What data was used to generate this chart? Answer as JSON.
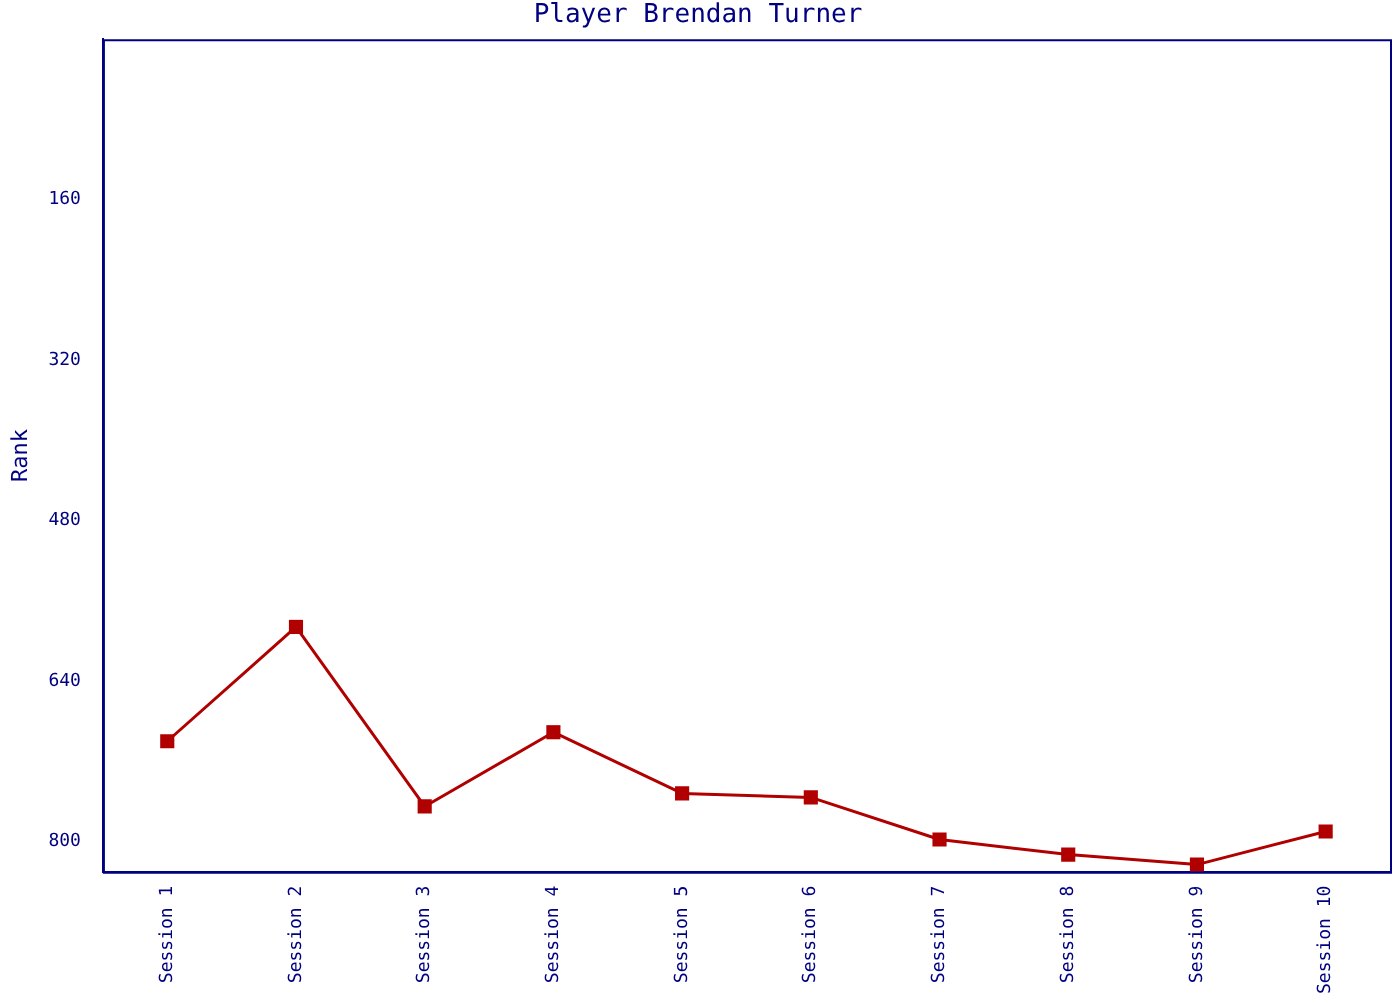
{
  "chart_data": {
    "type": "line",
    "title": "Player Brendan Turner",
    "ylabel": "Rank",
    "categories": [
      "Session 1",
      "Session 2",
      "Session 3",
      "Session 4",
      "Session 5",
      "Session 6",
      "Session 7",
      "Session 8",
      "Session 9",
      "Session 10"
    ],
    "series": [
      {
        "color": "#b00000",
        "values": [
          700,
          586,
          765,
          691,
          752,
          756,
          798,
          813,
          823,
          790
        ]
      }
    ],
    "ylim": [
      830,
      0
    ],
    "yticks": [
      160,
      320,
      480,
      640,
      800
    ],
    "grid": false,
    "legend": false,
    "marker": "square",
    "line_style": "solid"
  }
}
